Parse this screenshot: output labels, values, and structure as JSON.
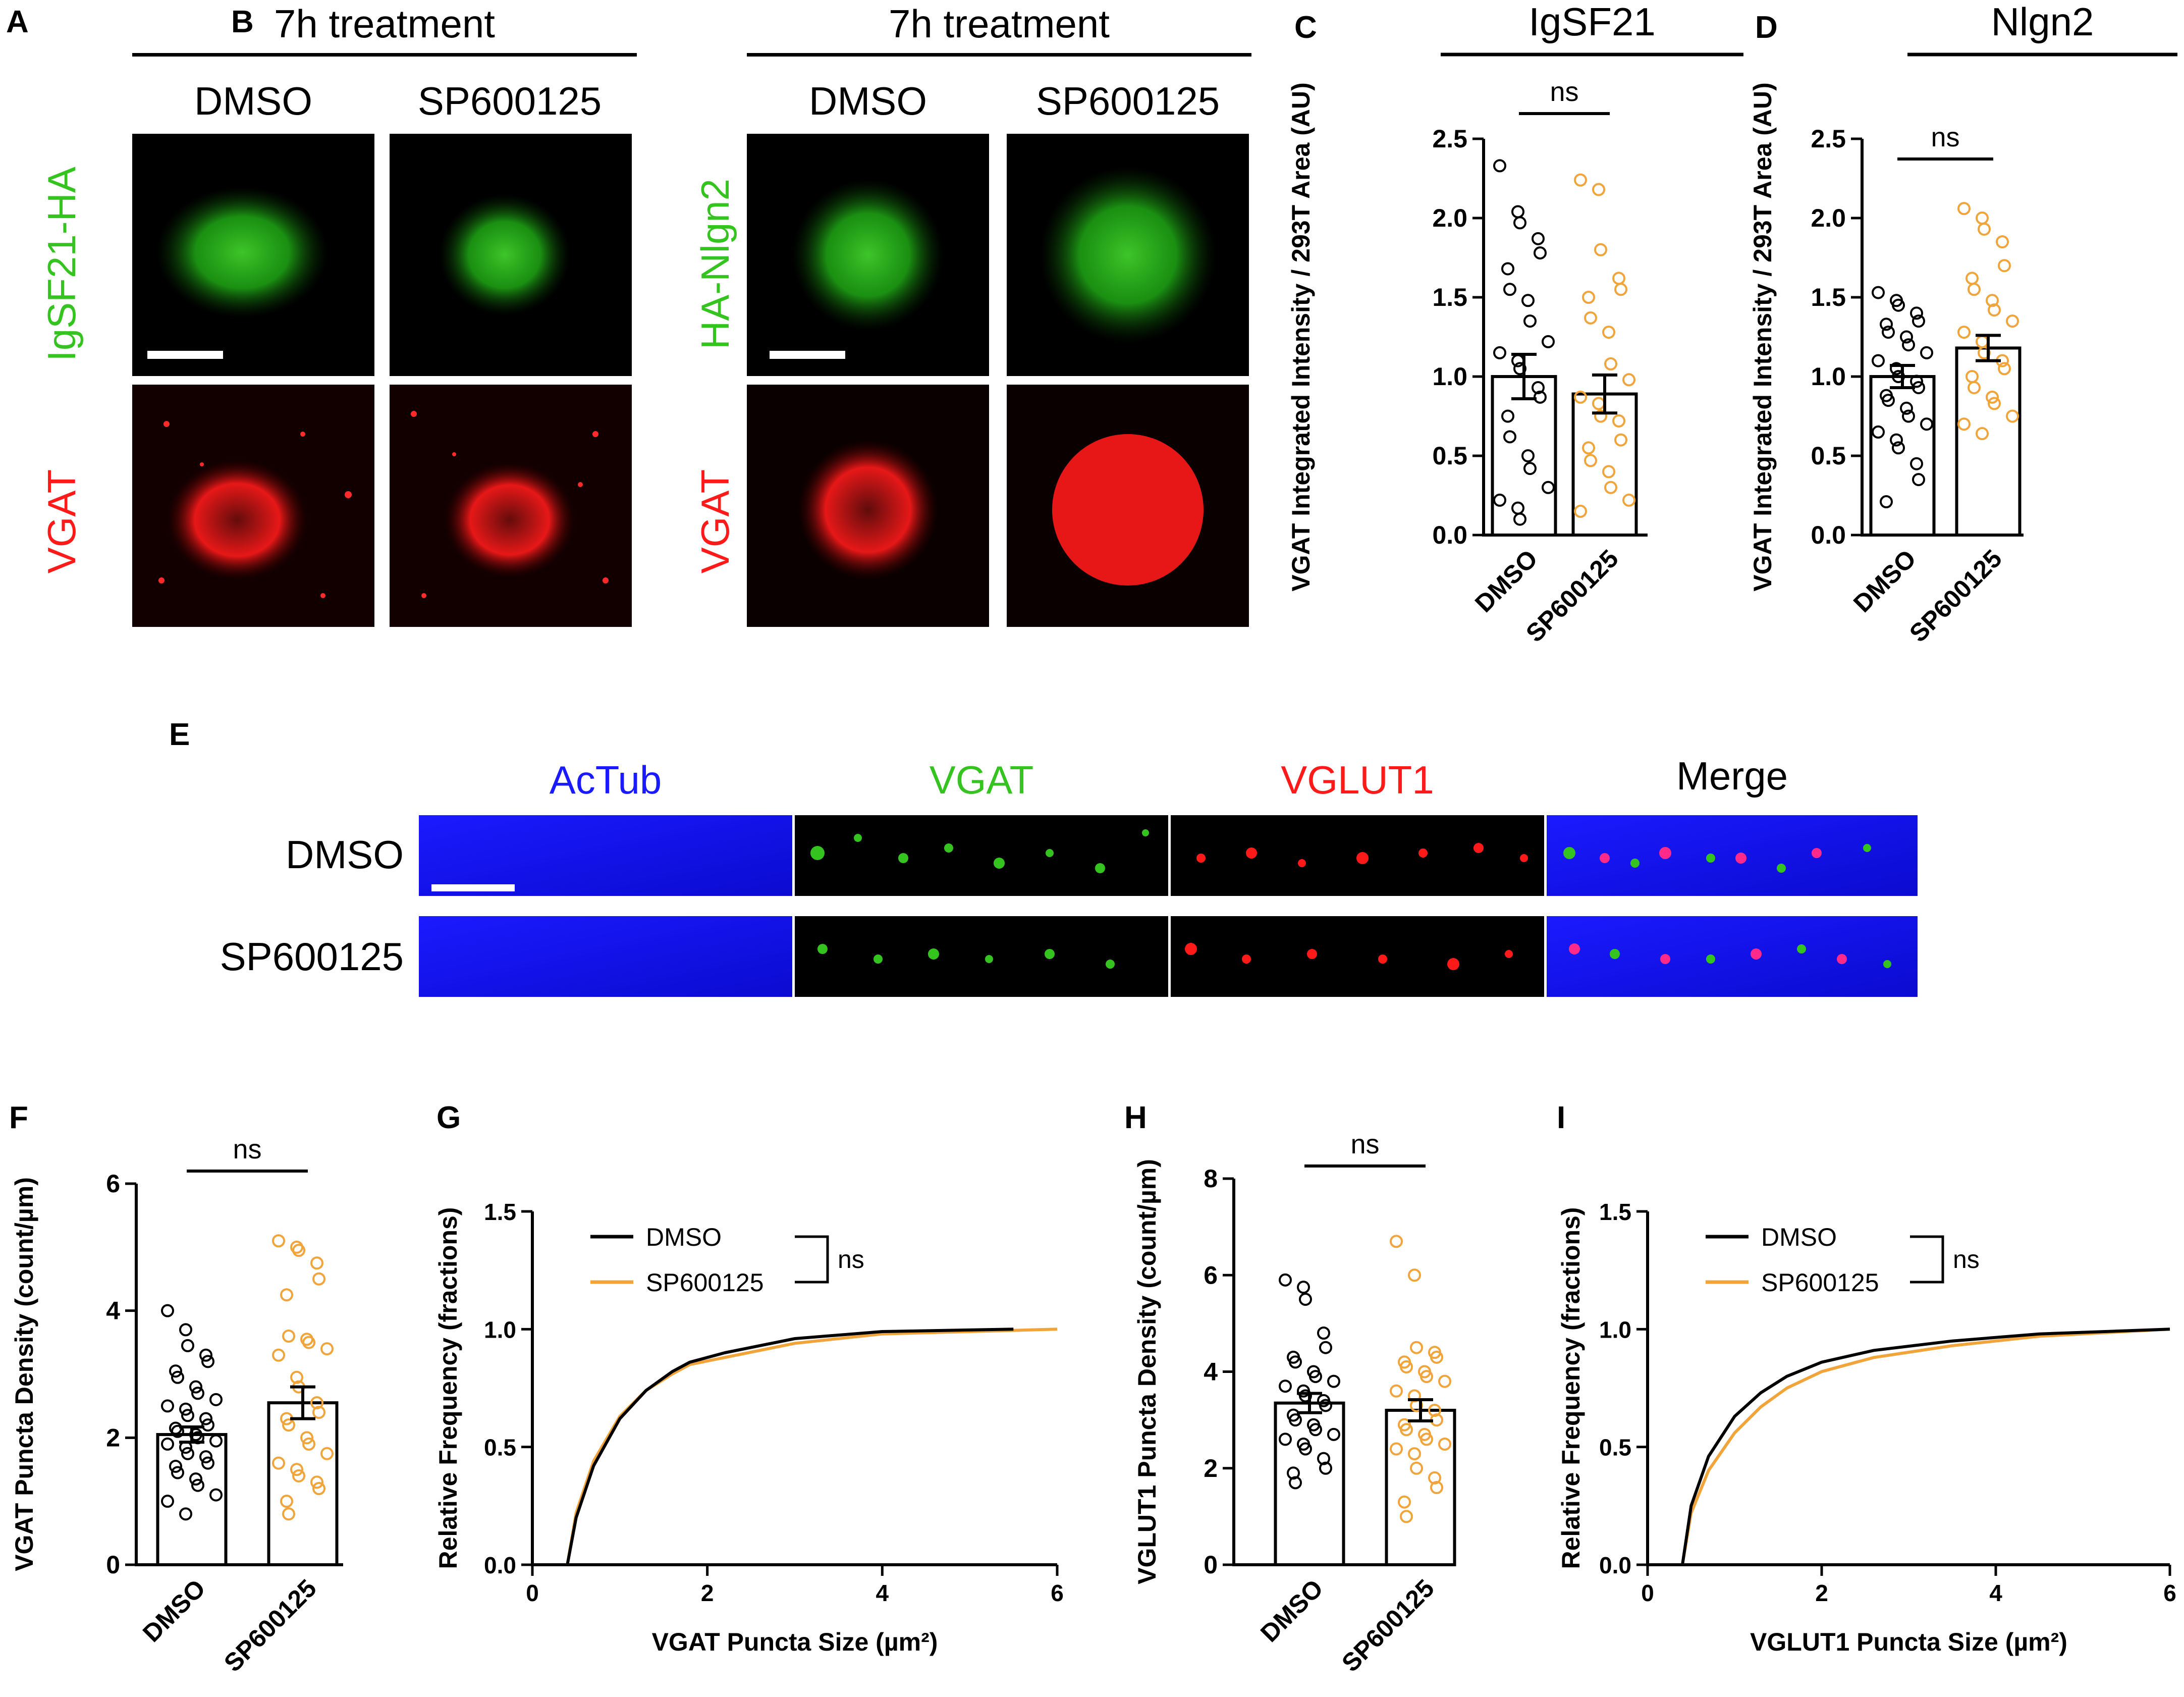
{
  "colors": {
    "black": "#000000",
    "orange": "#f0a43a",
    "green": "#35c41f",
    "red": "#ff1a1a",
    "blue": "#1a1aff",
    "mic_bg": "#000000"
  },
  "panelA": {
    "letter": "A",
    "header": "7h treatment",
    "col1": "DMSO",
    "col2": "SP600125",
    "row1": "IgSF21-HA",
    "row2": "VGAT"
  },
  "panelB": {
    "letter": "B",
    "header": "7h treatment",
    "col1": "DMSO",
    "col2": "SP600125",
    "row1": "HA-Nlgn2",
    "row2": "VGAT"
  },
  "panelE": {
    "letter": "E",
    "cols": [
      "AcTub",
      "VGAT",
      "VGLUT1",
      "Merge"
    ],
    "rows": [
      "DMSO",
      "SP600125"
    ]
  },
  "chart_data": [
    {
      "panel": "C",
      "type": "bar",
      "title": "IgSF21",
      "ylabel": "VGAT Integrated Intensity / 293T  Area  (AU)",
      "categories": [
        "DMSO",
        "SP600125"
      ],
      "ylim": [
        0,
        2.5
      ],
      "yticks": [
        "0.0",
        "0.5",
        "1.0",
        "1.5",
        "2.0",
        "2.5"
      ],
      "values": [
        1.0,
        0.89
      ],
      "sem": [
        0.14,
        0.12
      ],
      "significance": "ns",
      "points": [
        [
          2.33,
          2.04,
          1.97,
          1.87,
          1.78,
          1.68,
          1.55,
          1.48,
          1.35,
          1.22,
          1.15,
          1.1,
          1.05,
          0.93,
          0.87,
          0.75,
          0.62,
          0.5,
          0.42,
          0.3,
          0.22,
          0.17,
          0.1
        ],
        [
          2.24,
          2.18,
          1.8,
          1.62,
          1.55,
          1.5,
          1.37,
          1.28,
          1.08,
          0.98,
          0.87,
          0.83,
          0.75,
          0.72,
          0.6,
          0.55,
          0.47,
          0.4,
          0.3,
          0.22,
          0.15
        ]
      ]
    },
    {
      "panel": "D",
      "type": "bar",
      "title": "Nlgn2",
      "ylabel": "VGAT Integrated Intensity / 293T  Area  (AU)",
      "categories": [
        "DMSO",
        "SP600125"
      ],
      "ylim": [
        0,
        2.5
      ],
      "yticks": [
        "0.0",
        "0.5",
        "1.0",
        "1.5",
        "2.0",
        "2.5"
      ],
      "values": [
        1.0,
        1.18
      ],
      "sem": [
        0.07,
        0.08
      ],
      "significance": "ns",
      "points": [
        [
          1.53,
          1.48,
          1.45,
          1.4,
          1.35,
          1.33,
          1.28,
          1.25,
          1.2,
          1.15,
          1.1,
          1.05,
          1.0,
          0.97,
          0.93,
          0.88,
          0.85,
          0.8,
          0.75,
          0.7,
          0.65,
          0.6,
          0.55,
          0.45,
          0.35,
          0.21
        ],
        [
          2.06,
          2.0,
          1.93,
          1.85,
          1.7,
          1.62,
          1.55,
          1.48,
          1.42,
          1.35,
          1.28,
          1.22,
          1.15,
          1.1,
          1.05,
          1.0,
          0.93,
          0.87,
          0.83,
          0.75,
          0.7,
          0.64
        ]
      ]
    },
    {
      "panel": "F",
      "type": "bar",
      "title": "",
      "ylabel": "VGAT Puncta Density (count/µm)",
      "categories": [
        "DMSO",
        "SP600125"
      ],
      "ylim": [
        0,
        6
      ],
      "yticks": [
        "0",
        "2",
        "4",
        "6"
      ],
      "values": [
        2.05,
        2.55
      ],
      "sem": [
        0.12,
        0.25
      ],
      "significance": "ns",
      "points": [
        [
          4.0,
          3.7,
          3.45,
          3.3,
          3.2,
          3.05,
          2.95,
          2.8,
          2.7,
          2.6,
          2.5,
          2.45,
          2.35,
          2.3,
          2.2,
          2.15,
          2.1,
          2.05,
          2.0,
          1.95,
          1.9,
          1.85,
          1.75,
          1.7,
          1.6,
          1.55,
          1.45,
          1.35,
          1.25,
          1.1,
          1.0,
          0.8
        ],
        [
          5.1,
          5.0,
          4.95,
          4.75,
          4.5,
          4.25,
          3.6,
          3.55,
          3.5,
          3.4,
          3.3,
          2.95,
          2.8,
          2.55,
          2.4,
          2.3,
          2.2,
          2.0,
          1.9,
          1.75,
          1.6,
          1.5,
          1.4,
          1.3,
          1.2,
          1.0,
          0.8
        ]
      ]
    },
    {
      "panel": "G",
      "type": "line",
      "title": "",
      "xlabel": "VGAT Puncta Size (µm²)",
      "ylabel": "Relative Frequency (fractions)",
      "xlim": [
        0,
        6
      ],
      "ylim": [
        0,
        1.5
      ],
      "xticks": [
        "0",
        "2",
        "4",
        "6"
      ],
      "yticks": [
        "0.0",
        "0.5",
        "1.0",
        "1.5"
      ],
      "legend_position": "top-center",
      "significance": "ns",
      "series": [
        {
          "name": "DMSO",
          "color": "#000000",
          "x": [
            0.4,
            0.5,
            0.7,
            1.0,
            1.3,
            1.6,
            1.8,
            2.2,
            3.0,
            4.0,
            5.5
          ],
          "y": [
            0.0,
            0.2,
            0.42,
            0.62,
            0.74,
            0.82,
            0.86,
            0.9,
            0.96,
            0.99,
            1.0
          ]
        },
        {
          "name": "SP600125",
          "color": "#f0a43a",
          "x": [
            0.4,
            0.5,
            0.7,
            1.0,
            1.3,
            1.6,
            1.8,
            2.2,
            3.0,
            4.0,
            6.0
          ],
          "y": [
            0.0,
            0.22,
            0.44,
            0.63,
            0.74,
            0.81,
            0.85,
            0.88,
            0.94,
            0.98,
            1.0
          ]
        }
      ]
    },
    {
      "panel": "H",
      "type": "bar",
      "title": "",
      "ylabel": "VGLUT1 Puncta Density (count/µm)",
      "categories": [
        "DMSO",
        "SP600125"
      ],
      "ylim": [
        0,
        8
      ],
      "yticks": [
        "0",
        "2",
        "4",
        "6",
        "8"
      ],
      "values": [
        3.35,
        3.2
      ],
      "sem": [
        0.2,
        0.22
      ],
      "significance": "ns",
      "points": [
        [
          5.9,
          5.75,
          5.5,
          4.8,
          4.5,
          4.3,
          4.2,
          4.0,
          3.9,
          3.8,
          3.7,
          3.6,
          3.5,
          3.4,
          3.3,
          3.1,
          3.0,
          2.9,
          2.8,
          2.7,
          2.6,
          2.5,
          2.4,
          2.2,
          2.0,
          1.9,
          1.7
        ],
        [
          6.7,
          6.0,
          4.5,
          4.4,
          4.3,
          4.2,
          4.1,
          4.0,
          3.9,
          3.8,
          3.6,
          3.5,
          3.3,
          3.2,
          3.0,
          2.9,
          2.8,
          2.7,
          2.6,
          2.5,
          2.4,
          2.3,
          2.0,
          1.8,
          1.6,
          1.3,
          1.0
        ]
      ]
    },
    {
      "panel": "I",
      "type": "line",
      "title": "",
      "xlabel": "VGLUT1 Puncta Size (µm²)",
      "ylabel": "Relative Frequency (fractions)",
      "xlim": [
        0,
        6
      ],
      "ylim": [
        0,
        1.5
      ],
      "xticks": [
        "0",
        "2",
        "4",
        "6"
      ],
      "yticks": [
        "0.0",
        "0.5",
        "1.0",
        "1.5"
      ],
      "legend_position": "top-center",
      "significance": "ns",
      "series": [
        {
          "name": "DMSO",
          "color": "#000000",
          "x": [
            0.4,
            0.5,
            0.7,
            1.0,
            1.3,
            1.6,
            2.0,
            2.6,
            3.5,
            4.5,
            6.0
          ],
          "y": [
            0.0,
            0.25,
            0.46,
            0.63,
            0.73,
            0.8,
            0.86,
            0.91,
            0.95,
            0.98,
            1.0
          ]
        },
        {
          "name": "SP600125",
          "color": "#f0a43a",
          "x": [
            0.4,
            0.5,
            0.7,
            1.0,
            1.3,
            1.6,
            2.0,
            2.6,
            3.5,
            4.5,
            6.0
          ],
          "y": [
            0.0,
            0.22,
            0.4,
            0.56,
            0.67,
            0.75,
            0.82,
            0.88,
            0.93,
            0.97,
            1.0
          ]
        }
      ]
    }
  ]
}
